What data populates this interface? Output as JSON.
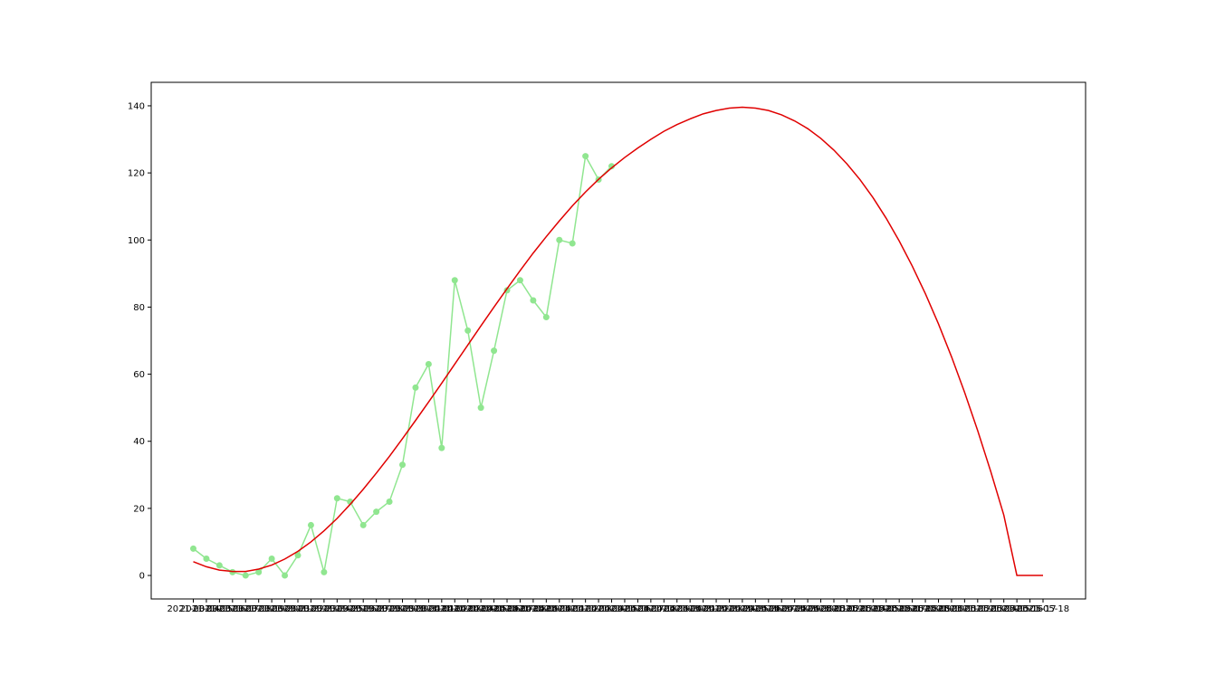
{
  "chart_data": {
    "type": "line",
    "title": "",
    "xlabel": "",
    "ylabel": "",
    "x_tick_labels": [
      "2021-03-14",
      "2021-03-15",
      "2021-03-16",
      "2021-03-17",
      "2021-03-18",
      "2021-03-19",
      "2021-03-20",
      "2021-03-21",
      "2021-03-22",
      "2021-03-23",
      "2021-03-24",
      "2021-03-25",
      "2021-03-26",
      "2021-03-27",
      "2021-03-28",
      "2021-03-29",
      "2021-03-30",
      "2021-03-31",
      "2021-04-01",
      "2021-04-02",
      "2021-04-03",
      "2021-04-04",
      "2021-04-05",
      "2021-04-06",
      "2021-04-07",
      "2021-04-08",
      "2021-04-09",
      "2021-04-10",
      "2021-04-11",
      "2021-04-12",
      "2021-04-13",
      "2021-04-14",
      "2021-04-15",
      "2021-04-16",
      "2021-04-17",
      "2021-04-18",
      "2021-04-19",
      "2021-04-20",
      "2021-04-21",
      "2021-04-22",
      "2021-04-23",
      "2021-04-24",
      "2021-04-25",
      "2021-04-26",
      "2021-04-27",
      "2021-04-28",
      "2021-04-29",
      "2021-04-30",
      "2021-05-01",
      "2021-05-02",
      "2021-05-03",
      "2021-05-04",
      "2021-05-05",
      "2021-05-06",
      "2021-05-07",
      "2021-05-08",
      "2021-05-09",
      "2021-05-10",
      "2021-05-11",
      "2021-05-12",
      "2021-05-13",
      "2021-05-14",
      "2021-05-15",
      "2021-05-16",
      "2021-05-17",
      "2021-05-18"
    ],
    "y_ticks": [
      0,
      20,
      40,
      60,
      80,
      100,
      120,
      140
    ],
    "ylim": [
      -7,
      147
    ],
    "grid": false,
    "series": [
      {
        "color": "#90e690",
        "marker": "circle",
        "values": [
          8,
          5,
          3,
          1,
          0,
          1,
          5,
          0,
          6,
          15,
          1,
          23,
          22,
          15,
          19,
          22,
          33,
          56,
          63,
          38,
          88,
          73,
          50,
          67,
          85,
          88,
          82,
          77,
          100,
          99,
          125,
          118,
          122
        ]
      },
      {
        "color": "#e00000",
        "marker": "none",
        "values": [
          4.1,
          2.6,
          1.6,
          1.2,
          1.2,
          1.9,
          3.1,
          4.9,
          7.2,
          10.0,
          13.3,
          17.0,
          21.2,
          25.7,
          30.5,
          35.5,
          40.8,
          46.2,
          51.7,
          57.3,
          63.0,
          68.7,
          74.4,
          80.0,
          85.5,
          90.9,
          96.1,
          101.0,
          105.7,
          110.2,
          114.3,
          118.1,
          121.5,
          124.6,
          127.4,
          130.0,
          132.4,
          134.4,
          136.1,
          137.6,
          138.6,
          139.3,
          139.6,
          139.3,
          138.6,
          137.3,
          135.5,
          133.2,
          130.3,
          126.8,
          122.7,
          118.0,
          112.6,
          106.5,
          99.7,
          92.2,
          84.0,
          75.0,
          65.2,
          54.6,
          43.2,
          31.0,
          18.0,
          0.0,
          0.0,
          0.0
        ]
      }
    ]
  }
}
